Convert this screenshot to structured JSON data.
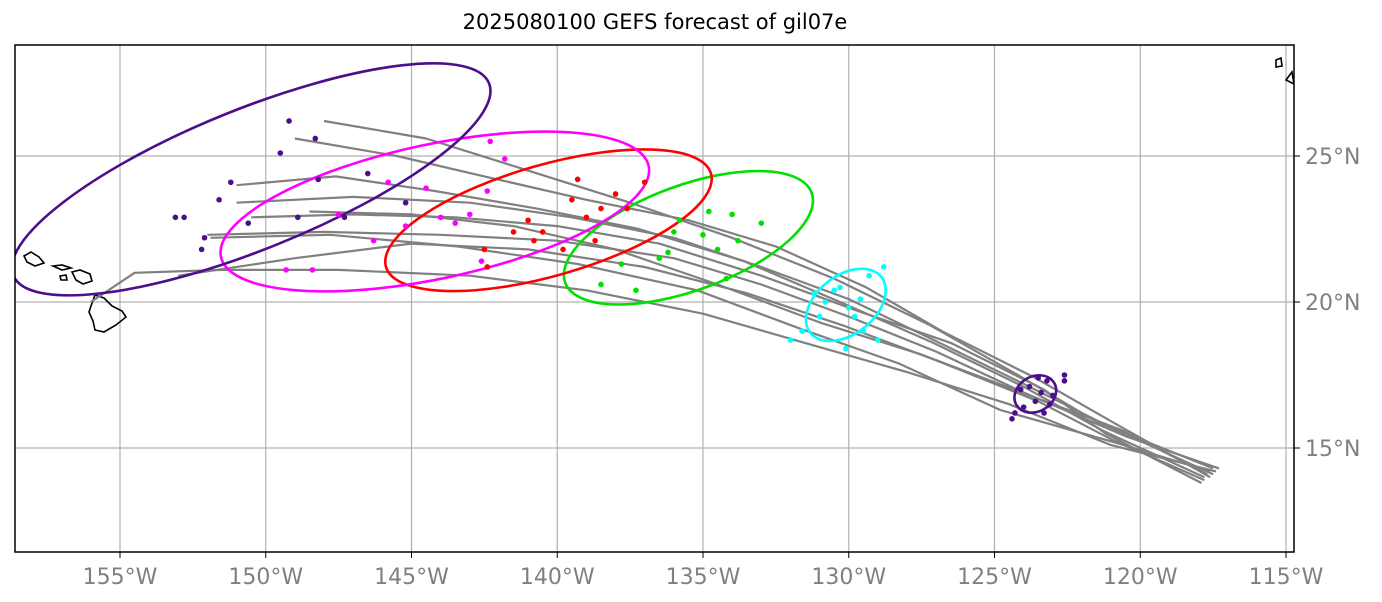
{
  "title": "2025080100 GEFS forecast of gil07e",
  "map": {
    "lon_range": [
      -158.5,
      -114.5
    ],
    "lat_range": [
      11.5,
      28.8
    ],
    "lon_ticks": [
      {
        "value": -155,
        "label": "155°W"
      },
      {
        "value": -150,
        "label": "150°W"
      },
      {
        "value": -145,
        "label": "145°W"
      },
      {
        "value": -140,
        "label": "140°W"
      },
      {
        "value": -135,
        "label": "135°W"
      },
      {
        "value": -130,
        "label": "130°W"
      },
      {
        "value": -125,
        "label": "125°W"
      },
      {
        "value": -120,
        "label": "120°W"
      },
      {
        "value": -115,
        "label": "115°W"
      }
    ],
    "lat_ticks": [
      {
        "value": 15,
        "label": "15°N"
      },
      {
        "value": 20,
        "label": "20°N"
      },
      {
        "value": 25,
        "label": "25°N"
      }
    ],
    "grid": true,
    "colors": {
      "track": "#808080",
      "grid": "#b0b0b0",
      "coast": "#000000",
      "day1": "#4b0f8c",
      "day2": "#00ffff",
      "day3": "#00e000",
      "day4": "#ff0000",
      "day5": "#ff00ff",
      "day6": "#4b0f8c"
    }
  },
  "chart_data": {
    "type": "scatter",
    "tracks": [
      [
        [
          -117.3,
          14.3
        ],
        [
          -120.5,
          15.4
        ],
        [
          -124,
          16.9
        ],
        [
          -127,
          18.3
        ],
        [
          -130,
          19.5
        ],
        [
          -133,
          20.6
        ],
        [
          -136,
          21.5
        ],
        [
          -140,
          22.1
        ],
        [
          -144,
          22.3
        ],
        [
          -148,
          22.4
        ],
        [
          -152,
          22.3
        ]
      ],
      [
        [
          -117.5,
          14.1
        ],
        [
          -121,
          15.7
        ],
        [
          -124,
          17.2
        ],
        [
          -127.3,
          18.8
        ],
        [
          -130,
          20.1
        ],
        [
          -133,
          21.2
        ],
        [
          -136,
          22.2
        ],
        [
          -139.5,
          22.9
        ],
        [
          -143,
          23.4
        ],
        [
          -147,
          23.6
        ],
        [
          -151,
          23.4
        ]
      ],
      [
        [
          -117.8,
          13.9
        ],
        [
          -121,
          15.3
        ],
        [
          -123.5,
          16.6
        ],
        [
          -127,
          18
        ],
        [
          -130.2,
          19.2
        ],
        [
          -133.5,
          20.3
        ],
        [
          -137,
          21.2
        ],
        [
          -141,
          21.8
        ],
        [
          -145,
          22
        ],
        [
          -149,
          21.5
        ],
        [
          -153,
          20.9
        ]
      ],
      [
        [
          -117.6,
          14
        ],
        [
          -120.8,
          15.8
        ],
        [
          -123.6,
          17.4
        ],
        [
          -126.8,
          19
        ],
        [
          -129.4,
          20.5
        ],
        [
          -132.5,
          21.9
        ],
        [
          -135.5,
          22.8
        ],
        [
          -139,
          23.5
        ],
        [
          -142.5,
          24.3
        ],
        [
          -145.5,
          25
        ],
        [
          -149,
          25.6
        ]
      ],
      [
        [
          -117.4,
          14.2
        ],
        [
          -121,
          15.1
        ],
        [
          -124.5,
          16.5
        ],
        [
          -128,
          17.6
        ],
        [
          -131.5,
          18.6
        ],
        [
          -135,
          19.6
        ],
        [
          -139,
          20.4
        ],
        [
          -143,
          20.9
        ],
        [
          -147.5,
          21.1
        ],
        [
          -151.5,
          21.1
        ],
        [
          -154.5,
          21
        ],
        [
          -156,
          20
        ]
      ],
      [
        [
          -117.9,
          13.8
        ],
        [
          -121.2,
          15.5
        ],
        [
          -123.3,
          17
        ],
        [
          -126.5,
          18.6
        ],
        [
          -129.7,
          19.7
        ],
        [
          -133,
          20.9
        ],
        [
          -136.5,
          22
        ],
        [
          -140,
          22.6
        ],
        [
          -143.5,
          22.9
        ],
        [
          -147,
          23
        ],
        [
          -150.5,
          22.9
        ]
      ],
      [
        [
          -117.7,
          14.1
        ],
        [
          -120.6,
          15.6
        ],
        [
          -123.8,
          16.8
        ],
        [
          -127.5,
          18.2
        ],
        [
          -131,
          19.3
        ],
        [
          -134.5,
          20.6
        ],
        [
          -138,
          21.8
        ],
        [
          -141.5,
          22.6
        ],
        [
          -145,
          23
        ],
        [
          -148.5,
          23.1
        ]
      ],
      [
        [
          -117.5,
          14.3
        ],
        [
          -121.5,
          15.9
        ],
        [
          -124.2,
          17.5
        ],
        [
          -127.2,
          19.2
        ],
        [
          -130.5,
          20.8
        ],
        [
          -134,
          22.2
        ],
        [
          -137.5,
          23.4
        ],
        [
          -141,
          24.5
        ],
        [
          -144.5,
          25.6
        ],
        [
          -148,
          26.2
        ]
      ],
      [
        [
          -117.6,
          14.2
        ],
        [
          -120.9,
          15.2
        ],
        [
          -124.8,
          16.3
        ],
        [
          -128.3,
          17.9
        ],
        [
          -131.7,
          19.1
        ],
        [
          -135.2,
          20.4
        ],
        [
          -139.3,
          21.3
        ],
        [
          -143.4,
          21.9
        ],
        [
          -147.8,
          22.3
        ],
        [
          -151.9,
          22.2
        ]
      ],
      [
        [
          -117.8,
          14
        ],
        [
          -121.3,
          15.6
        ],
        [
          -124,
          17.1
        ],
        [
          -127.1,
          18.6
        ],
        [
          -130.3,
          20
        ],
        [
          -133.6,
          21.4
        ],
        [
          -137.2,
          22.5
        ],
        [
          -140.7,
          23.2
        ],
        [
          -144.2,
          23.8
        ],
        [
          -147.6,
          24.3
        ],
        [
          -151,
          24
        ]
      ]
    ],
    "ellipses": [
      {
        "cx": -123.6,
        "cy": 16.85,
        "rx": 0.75,
        "ry": 0.6,
        "angle": -30,
        "color": "#4b0f8c"
      },
      {
        "cx": -130.1,
        "cy": 19.9,
        "rx": 1.55,
        "ry": 1.0,
        "angle": -38,
        "color": "#00ffff"
      },
      {
        "cx": -135.5,
        "cy": 22.2,
        "rx": 4.5,
        "ry": 1.8,
        "angle": -20,
        "color": "#00e000"
      },
      {
        "cx": -140.3,
        "cy": 22.8,
        "rx": 5.8,
        "ry": 1.9,
        "angle": -16,
        "color": "#ff0000"
      },
      {
        "cx": -144.2,
        "cy": 23.1,
        "rx": 7.5,
        "ry": 2.3,
        "angle": -12,
        "color": "#ff00ff"
      },
      {
        "cx": -150.5,
        "cy": 24.2,
        "rx": 8.8,
        "ry": 2.4,
        "angle": -22,
        "color": "#4b0f8c"
      }
    ],
    "points": [
      {
        "color": "#4b0f8c",
        "points": [
          [
            -123.8,
            17.1
          ],
          [
            -123.4,
            16.9
          ],
          [
            -123.6,
            16.6
          ],
          [
            -123.2,
            17.3
          ],
          [
            -124,
            16.4
          ],
          [
            -123,
            16.8
          ],
          [
            -122.6,
            17.3
          ],
          [
            -124.3,
            16.2
          ],
          [
            -123.5,
            17.4
          ],
          [
            -124.1,
            17.0
          ],
          [
            -123.1,
            16.5
          ],
          [
            -122.6,
            17.5
          ],
          [
            -124.4,
            16.0
          ],
          [
            -123.3,
            16.2
          ]
        ]
      },
      {
        "color": "#00ffff",
        "points": [
          [
            -130.5,
            20.4
          ],
          [
            -130,
            19.8
          ],
          [
            -129.6,
            20.1
          ],
          [
            -131,
            19.5
          ],
          [
            -129.3,
            20.9
          ],
          [
            -128.8,
            21.2
          ],
          [
            -131.6,
            19.0
          ],
          [
            -132,
            18.7
          ],
          [
            -129,
            18.7
          ],
          [
            -130.3,
            20.5
          ],
          [
            -129.8,
            19.5
          ],
          [
            -130.1,
            18.4
          ],
          [
            -130.8,
            20.0
          ],
          [
            -129.5,
            19.0
          ],
          [
            -131.2,
            20.3
          ]
        ]
      },
      {
        "color": "#00e000",
        "points": [
          [
            -135,
            22.3
          ],
          [
            -134,
            23
          ],
          [
            -136.5,
            21.5
          ],
          [
            -133.8,
            22.1
          ],
          [
            -136,
            22.4
          ],
          [
            -138.5,
            20.6
          ],
          [
            -137.3,
            20.4
          ],
          [
            -134.5,
            21.8
          ],
          [
            -133,
            22.7
          ],
          [
            -135.8,
            22.8
          ],
          [
            -134.8,
            23.1
          ],
          [
            -136.2,
            21.7
          ],
          [
            -137.8,
            21.3
          ],
          [
            -134.2,
            20.8
          ]
        ]
      },
      {
        "color": "#ff0000",
        "points": [
          [
            -139.5,
            23.5
          ],
          [
            -138.5,
            23.2
          ],
          [
            -141,
            22.8
          ],
          [
            -140.5,
            22.4
          ],
          [
            -139,
            22.9
          ],
          [
            -142.5,
            21.8
          ],
          [
            -141.5,
            22.4
          ],
          [
            -138,
            23.7
          ],
          [
            -137,
            24.1
          ],
          [
            -139.8,
            21.8
          ],
          [
            -140.8,
            22.1
          ],
          [
            -137.6,
            23.2
          ],
          [
            -138.7,
            22.1
          ],
          [
            -142.4,
            21.2
          ],
          [
            -139.3,
            24.2
          ]
        ]
      },
      {
        "color": "#ff00ff",
        "points": [
          [
            -143,
            23
          ],
          [
            -144.5,
            23.9
          ],
          [
            -145.2,
            22.6
          ],
          [
            -142.4,
            23.8
          ],
          [
            -146.3,
            22.1
          ],
          [
            -142.3,
            25.5
          ],
          [
            -141.8,
            24.9
          ],
          [
            -147.5,
            23
          ],
          [
            -148.4,
            21.1
          ],
          [
            -149.3,
            21.1
          ],
          [
            -143.5,
            22.7
          ],
          [
            -144,
            22.9
          ],
          [
            -145.8,
            24.1
          ],
          [
            -142.6,
            21.4
          ]
        ]
      },
      {
        "color": "#4b0f8c",
        "points": [
          [
            -149.2,
            26.2
          ],
          [
            -148.3,
            25.6
          ],
          [
            -151.6,
            23.5
          ],
          [
            -150.6,
            22.7
          ],
          [
            -152.1,
            22.2
          ],
          [
            -152.8,
            22.9
          ],
          [
            -151.2,
            24.1
          ],
          [
            -148.9,
            22.9
          ],
          [
            -149.5,
            25.1
          ],
          [
            -148.2,
            24.2
          ],
          [
            -146.5,
            24.4
          ],
          [
            -145.2,
            23.4
          ],
          [
            -147.3,
            22.9
          ],
          [
            -152.2,
            21.8
          ],
          [
            -153.1,
            22.9
          ]
        ]
      }
    ]
  }
}
